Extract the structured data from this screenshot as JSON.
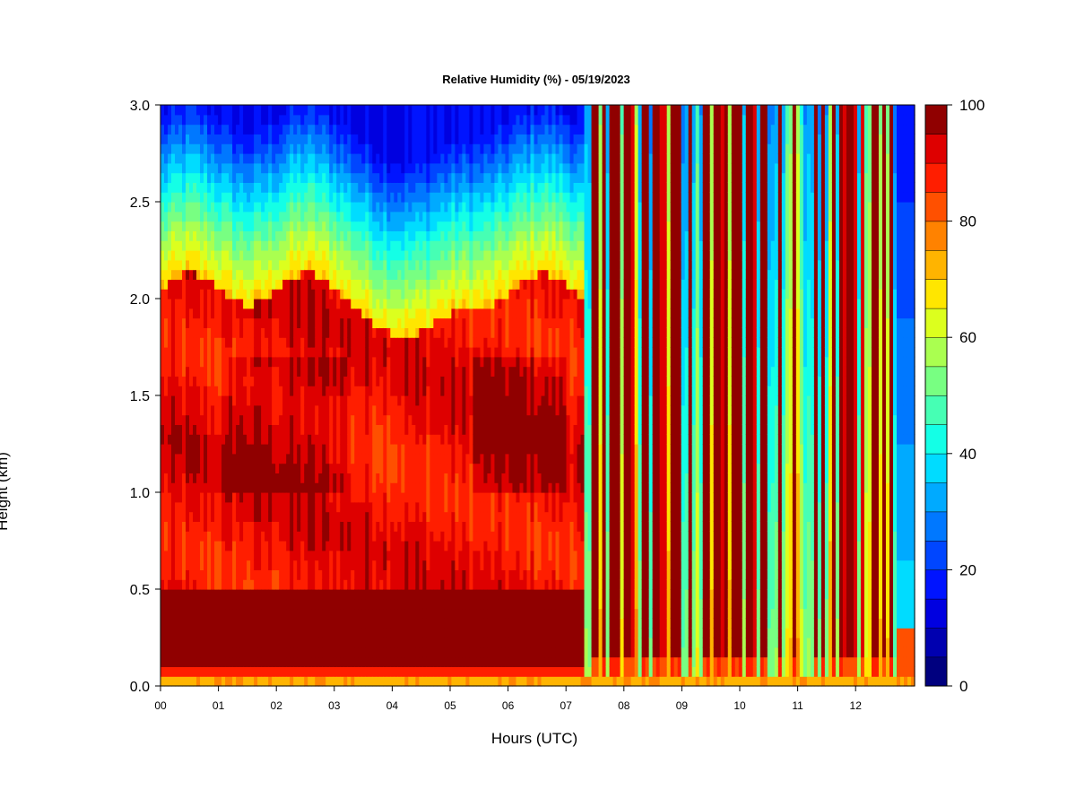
{
  "chart_data": {
    "type": "heatmap",
    "title": "Relative Humidity (%) - 05/19/2023",
    "xlabel": "Hours (UTC)",
    "ylabel": "Height (km)",
    "x_ticks": [
      "00",
      "01",
      "02",
      "03",
      "04",
      "05",
      "06",
      "07",
      "08",
      "09",
      "10",
      "11",
      "12"
    ],
    "y_ticks": [
      "0.0",
      "0.5",
      "1.0",
      "1.5",
      "2.0",
      "2.5",
      "3.0"
    ],
    "xlim": [
      0,
      13
    ],
    "ylim": [
      0,
      3
    ],
    "colorbar": {
      "ticks": [
        "0",
        "20",
        "40",
        "60",
        "80",
        "100"
      ],
      "range": [
        0,
        100
      ],
      "levels": 20,
      "colors": [
        "#00007f",
        "#0000b0",
        "#0000e0",
        "#0014ff",
        "#0046ff",
        "#0078ff",
        "#00aaff",
        "#00dcff",
        "#14ffe6",
        "#46ffb4",
        "#78ff82",
        "#aaff50",
        "#dcff1e",
        "#ffe600",
        "#ffb400",
        "#ff8200",
        "#ff5000",
        "#ff1e00",
        "#de0000",
        "#900000"
      ]
    },
    "features": {
      "surface_layer": {
        "height_km": [
          0.0,
          0.05
        ],
        "rh": 72
      },
      "moist_layer_top_km": {
        "before_07_3": 2.05,
        "trough_at_04_4": 1.75
      },
      "upper_dry_rh": {
        "00_to_07_3": 15
      },
      "regime_change_hour": 7.3,
      "after_change": "alternating vertical columns of saturated (90-100%) and drier (30-60%) air through 3.0 km"
    }
  }
}
